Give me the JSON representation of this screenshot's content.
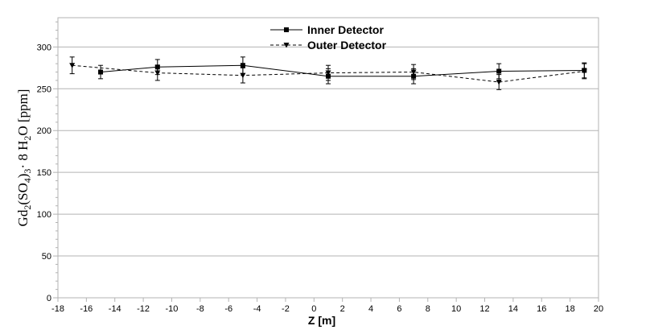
{
  "chart_data": {
    "type": "line",
    "xlabel": "Z [m]",
    "ylabel": {
      "base": "Gd",
      "sub1": "2",
      "mid1": "(SO",
      "sub2": "4",
      "mid2": ")",
      "sub3": "3",
      "mid3": "· 8 H",
      "sub4": "2",
      "end": "O [ppm]"
    },
    "xlim": [
      -18,
      20
    ],
    "ylim": [
      0,
      335
    ],
    "xticks": [
      -18,
      -16,
      -14,
      -12,
      -10,
      -8,
      -6,
      -4,
      -2,
      0,
      2,
      4,
      6,
      8,
      10,
      12,
      14,
      16,
      18,
      20
    ],
    "yticks": [
      0,
      50,
      100,
      150,
      200,
      250,
      300
    ],
    "grid": true,
    "legend_position": "top-center",
    "series": [
      {
        "name": "Inner Detector",
        "marker": "square",
        "line": "solid",
        "color": "#000000",
        "points": [
          {
            "x": -15,
            "y": 270,
            "err": 8
          },
          {
            "x": -11,
            "y": 276,
            "err": 9
          },
          {
            "x": -5,
            "y": 278,
            "err": 10
          },
          {
            "x": 1,
            "y": 265,
            "err": 9
          },
          {
            "x": 7,
            "y": 265,
            "err": 9
          },
          {
            "x": 13,
            "y": 271,
            "err": 9
          },
          {
            "x": 19,
            "y": 272,
            "err": 9
          }
        ]
      },
      {
        "name": "Outer Detector",
        "marker": "triangle-down",
        "line": "dashed",
        "color": "#000000",
        "points": [
          {
            "x": -17,
            "y": 278,
            "err": 10
          },
          {
            "x": -11,
            "y": 269,
            "err": 9
          },
          {
            "x": -5,
            "y": 266,
            "err": 9
          },
          {
            "x": 1,
            "y": 269,
            "err": 9
          },
          {
            "x": 7,
            "y": 270,
            "err": 9
          },
          {
            "x": 13,
            "y": 258,
            "err": 9
          },
          {
            "x": 19,
            "y": 271,
            "err": 9
          }
        ]
      }
    ]
  }
}
